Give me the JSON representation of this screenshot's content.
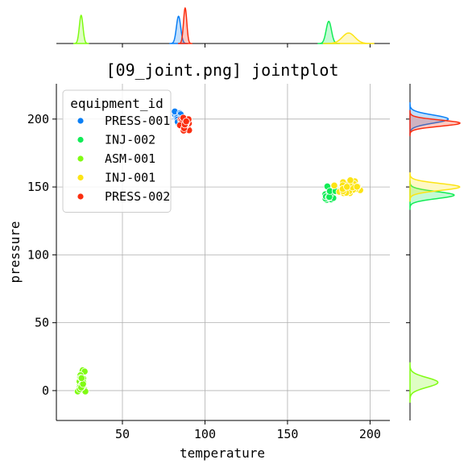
{
  "chart_data": {
    "type": "scatter",
    "title": "[09_joint.png] jointplot",
    "xlabel": "temperature",
    "ylabel": "pressure",
    "xlim": [
      10,
      212
    ],
    "ylim": [
      -22,
      226
    ],
    "xticks": [
      50,
      100,
      150,
      200
    ],
    "yticks": [
      0,
      50,
      100,
      150,
      200
    ],
    "grid": true,
    "legend": {
      "title": "equipment_id",
      "placement": "top-left"
    },
    "marginals": {
      "top": "kde of temperature by equipment_id",
      "right": "kde of pressure by equipment_id"
    },
    "series": [
      {
        "name": "PRESS-001",
        "color": "#0a7ff5",
        "x_center": 84,
        "y_center": 200,
        "x_spread": 2.0,
        "y_spread": 3.5,
        "n": 40,
        "x_sd": 1.3,
        "y_sd": 3.0
      },
      {
        "name": "INJ-002",
        "color": "#12ec56",
        "x_center": 175,
        "y_center": 144,
        "x_spread": 3.0,
        "y_spread": 4.0,
        "n": 40,
        "x_sd": 1.6,
        "y_sd": 2.6
      },
      {
        "name": "ASM-001",
        "color": "#80fb14",
        "x_center": 25,
        "y_center": 6,
        "x_spread": 2.0,
        "y_spread": 8.0,
        "n": 35,
        "x_sd": 1.1,
        "y_sd": 3.6
      },
      {
        "name": "INJ-001",
        "color": "#fce415",
        "x_center": 187,
        "y_center": 150,
        "x_spread": 7.0,
        "y_spread": 5.0,
        "n": 45,
        "x_sd": 3.8,
        "y_sd": 2.6
      },
      {
        "name": "PRESS-002",
        "color": "#fb2e10",
        "x_center": 88,
        "y_center": 197,
        "x_spread": 2.5,
        "y_spread": 4.0,
        "n": 40,
        "x_sd": 1.0,
        "y_sd": 2.3
      }
    ]
  }
}
